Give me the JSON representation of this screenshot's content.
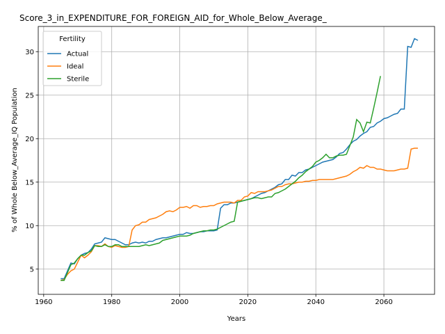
{
  "chart_data": {
    "type": "line",
    "title": "Score_3_in_EXPENDITURE_FOR_FOREIGN_AID_for_Whole_Below_Average_",
    "xlabel": "Years",
    "ylabel": "% of Whole Below_Average_IQ Population",
    "legend_title": "Fertility",
    "legend": "upper left",
    "grid": true,
    "xlim": [
      1958.4,
      2074.9
    ],
    "xticks": [
      1960,
      1980,
      2000,
      2020,
      2040,
      2060
    ],
    "ylim": [
      2.1,
      32.9
    ],
    "yticks": [
      5,
      10,
      15,
      20,
      25,
      30
    ],
    "x": [
      1965,
      1966,
      1967,
      1968,
      1969,
      1970,
      1971,
      1972,
      1973,
      1974,
      1975,
      1976,
      1977,
      1978,
      1979,
      1980,
      1981,
      1982,
      1983,
      1984,
      1985,
      1986,
      1987,
      1988,
      1989,
      1990,
      1991,
      1992,
      1993,
      1994,
      1995,
      1996,
      1997,
      1998,
      1999,
      2000,
      2001,
      2002,
      2003,
      2004,
      2005,
      2006,
      2007,
      2008,
      2009,
      2010,
      2011,
      2012,
      2013,
      2014,
      2015,
      2016,
      2017,
      2018,
      2019,
      2020,
      2021,
      2022,
      2023,
      2024,
      2025,
      2026,
      2027,
      2028,
      2029,
      2030,
      2031,
      2032,
      2033,
      2034,
      2035,
      2036,
      2037,
      2038,
      2039,
      2040,
      2041,
      2042,
      2043,
      2044,
      2045,
      2046,
      2047,
      2048,
      2049,
      2050,
      2051,
      2052,
      2053,
      2054,
      2055,
      2056,
      2057,
      2058,
      2059,
      2060,
      2061,
      2062,
      2063,
      2064,
      2065,
      2066,
      2067,
      2068,
      2069,
      2070
    ],
    "series": [
      {
        "name": "Actual",
        "color": "#1f77b4",
        "values": [
          3.9,
          3.9,
          4.8,
          5.7,
          5.6,
          6.2,
          6.6,
          6.8,
          6.9,
          7.3,
          7.9,
          8.0,
          8.1,
          8.6,
          8.5,
          8.4,
          8.4,
          8.2,
          8.0,
          7.8,
          7.8,
          8.0,
          8.1,
          8.0,
          8.1,
          8.0,
          8.2,
          8.2,
          8.4,
          8.5,
          8.6,
          8.6,
          8.7,
          8.8,
          8.9,
          9.0,
          9.0,
          9.2,
          9.1,
          9.1,
          9.2,
          9.3,
          9.3,
          9.4,
          9.4,
          9.4,
          9.5,
          12.0,
          12.4,
          12.4,
          12.6,
          12.6,
          12.7,
          12.8,
          12.9,
          13.0,
          13.1,
          13.3,
          13.5,
          13.7,
          13.8,
          14.0,
          14.2,
          14.4,
          14.7,
          14.8,
          15.3,
          15.3,
          15.8,
          15.7,
          16.1,
          16.1,
          16.4,
          16.5,
          16.7,
          16.9,
          17.1,
          17.3,
          17.4,
          17.5,
          17.6,
          17.9,
          18.3,
          18.4,
          18.8,
          19.3,
          19.7,
          19.9,
          20.3,
          20.6,
          20.8,
          21.3,
          21.4,
          21.8,
          22.0,
          22.3,
          22.4,
          22.6,
          22.8,
          22.9,
          23.4,
          23.4,
          30.6,
          30.5,
          31.5,
          31.3
        ]
      },
      {
        "name": "Ideal",
        "color": "#ff7f0e",
        "values": [
          3.7,
          3.8,
          4.4,
          4.8,
          5.0,
          5.8,
          6.6,
          6.3,
          6.6,
          7.0,
          7.7,
          7.7,
          7.6,
          7.9,
          7.6,
          7.5,
          7.7,
          7.6,
          7.5,
          7.5,
          7.6,
          9.5,
          10.0,
          10.1,
          10.4,
          10.4,
          10.7,
          10.8,
          10.9,
          11.1,
          11.3,
          11.6,
          11.7,
          11.6,
          11.8,
          12.1,
          12.1,
          12.2,
          12.0,
          12.3,
          12.3,
          12.1,
          12.2,
          12.2,
          12.3,
          12.3,
          12.5,
          12.6,
          12.7,
          12.7,
          12.7,
          12.6,
          12.9,
          12.9,
          13.3,
          13.4,
          13.8,
          13.7,
          13.9,
          13.9,
          13.9,
          14.0,
          14.1,
          14.3,
          14.5,
          14.5,
          14.7,
          14.8,
          14.8,
          14.9,
          15.0,
          15.0,
          15.1,
          15.1,
          15.2,
          15.2,
          15.3,
          15.3,
          15.3,
          15.3,
          15.3,
          15.4,
          15.5,
          15.6,
          15.7,
          15.9,
          16.2,
          16.4,
          16.7,
          16.6,
          16.9,
          16.7,
          16.7,
          16.5,
          16.5,
          16.4,
          16.3,
          16.3,
          16.3,
          16.4,
          16.5,
          16.5,
          16.6,
          18.8,
          18.9,
          18.9
        ]
      },
      {
        "name": "Sterile",
        "color": "#2ca02c",
        "values": [
          3.7,
          3.7,
          4.6,
          5.5,
          5.7,
          6.2,
          6.6,
          6.6,
          6.9,
          7.1,
          7.7,
          7.6,
          7.6,
          7.8,
          7.6,
          7.6,
          7.8,
          7.8,
          7.6,
          7.6,
          7.6,
          7.6,
          7.6,
          7.6,
          7.7,
          7.8,
          7.7,
          7.8,
          7.9,
          8.0,
          8.3,
          8.4,
          8.5,
          8.6,
          8.7,
          8.8,
          8.8,
          8.8,
          8.9,
          9.1,
          9.2,
          9.3,
          9.4,
          9.4,
          9.5,
          9.5,
          9.6,
          9.8,
          10.0,
          10.2,
          10.4,
          10.5,
          12.7,
          12.8,
          12.9,
          13.0,
          13.1,
          13.2,
          13.2,
          13.1,
          13.2,
          13.3,
          13.3,
          13.7,
          13.8,
          14.0,
          14.2,
          14.5,
          14.8,
          15.1,
          15.5,
          15.8,
          16.2,
          16.5,
          16.8,
          17.3,
          17.5,
          17.8,
          18.2,
          17.8,
          17.8,
          18.0,
          18.1,
          18.1,
          18.2,
          19.2,
          20.2,
          22.2,
          21.8,
          20.8,
          21.9,
          21.8,
          23.5,
          25.3,
          27.2,
          null,
          null,
          null,
          null,
          null,
          null,
          null,
          null,
          null,
          null,
          null
        ]
      }
    ]
  }
}
